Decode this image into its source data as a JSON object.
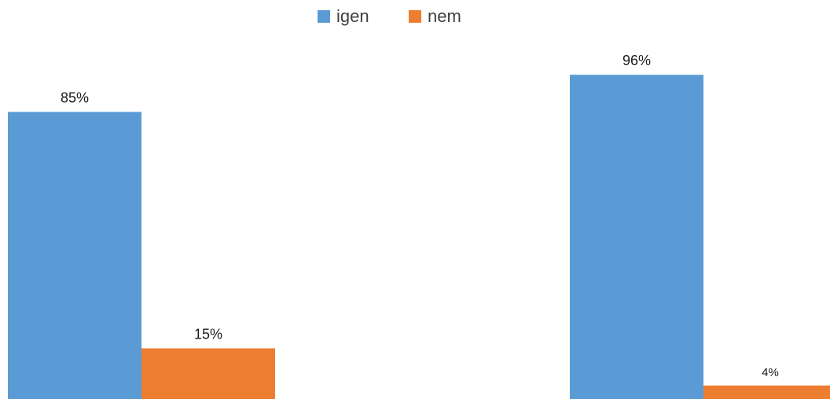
{
  "chart_data": {
    "type": "bar",
    "categories": [
      "",
      ""
    ],
    "series": [
      {
        "name": "igen",
        "values": [
          85,
          96
        ],
        "labels": [
          "85%",
          "96%"
        ],
        "color": "#5B9BD5"
      },
      {
        "name": "nem",
        "values": [
          15,
          4
        ],
        "labels": [
          "15%",
          "4%"
        ],
        "color": "#ED7D31"
      }
    ],
    "ylim": [
      0,
      100
    ],
    "grid": false,
    "legend": "top-center"
  }
}
